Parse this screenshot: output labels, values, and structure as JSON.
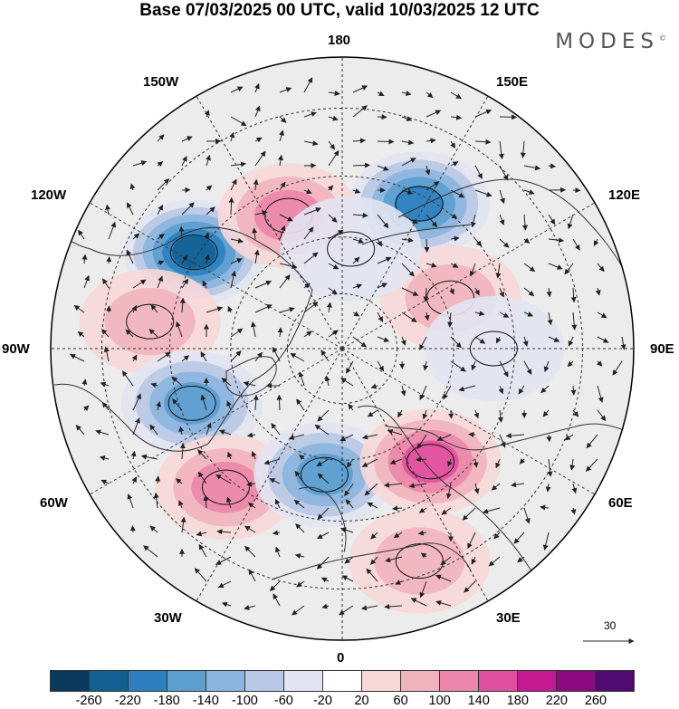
{
  "title": "Base 07/03/2025 00 UTC, valid 10/03/2025 12 UTC",
  "brand": "MODES",
  "brand_mark": "©",
  "longitude_labels": {
    "top": "180",
    "bottom": "0",
    "left": "90W",
    "right": "90E",
    "upper_left": "150W",
    "upper_right": "150E",
    "mid_upper_left": "120W",
    "mid_upper_right": "120E",
    "mid_lower_left": "60W",
    "mid_lower_right": "60E",
    "lower_left": "30W",
    "lower_right": "30E"
  },
  "reference_vector": "30",
  "colorbar": {
    "ticks": [
      "-260",
      "-220",
      "-180",
      "-140",
      "-100",
      "-60",
      "-20",
      "20",
      "60",
      "100",
      "140",
      "180",
      "220",
      "260"
    ],
    "colors": [
      "#0b3a5e",
      "#125f92",
      "#2d7fbf",
      "#5c9fd0",
      "#8bb5de",
      "#b8c8e6",
      "#e2e4f2",
      "#ffffff",
      "#f8d8d8",
      "#f1b4bf",
      "#ec86aa",
      "#df4fa0",
      "#c41a8f",
      "#8b0a7f",
      "#4e0a6e"
    ]
  },
  "map": {
    "projection": "north polar stereographic",
    "anomalies": [
      {
        "lon": -123,
        "lat": 44,
        "value": -230
      },
      {
        "lon": 152,
        "lat": 47,
        "value": -190
      },
      {
        "lon": -158,
        "lat": 52,
        "value": 110
      },
      {
        "lon": -98,
        "lat": 40,
        "value": 80
      },
      {
        "lon": -70,
        "lat": 48,
        "value": -150
      },
      {
        "lon": -40,
        "lat": 43,
        "value": 130
      },
      {
        "lon": -8,
        "lat": 56,
        "value": -170
      },
      {
        "lon": 38,
        "lat": 52,
        "value": 170
      },
      {
        "lon": 20,
        "lat": 33,
        "value": 90
      },
      {
        "lon": 115,
        "lat": 58,
        "value": 60
      },
      {
        "lon": 175,
        "lat": 63,
        "value": -40
      },
      {
        "lon": 90,
        "lat": 50,
        "value": -40
      }
    ]
  }
}
